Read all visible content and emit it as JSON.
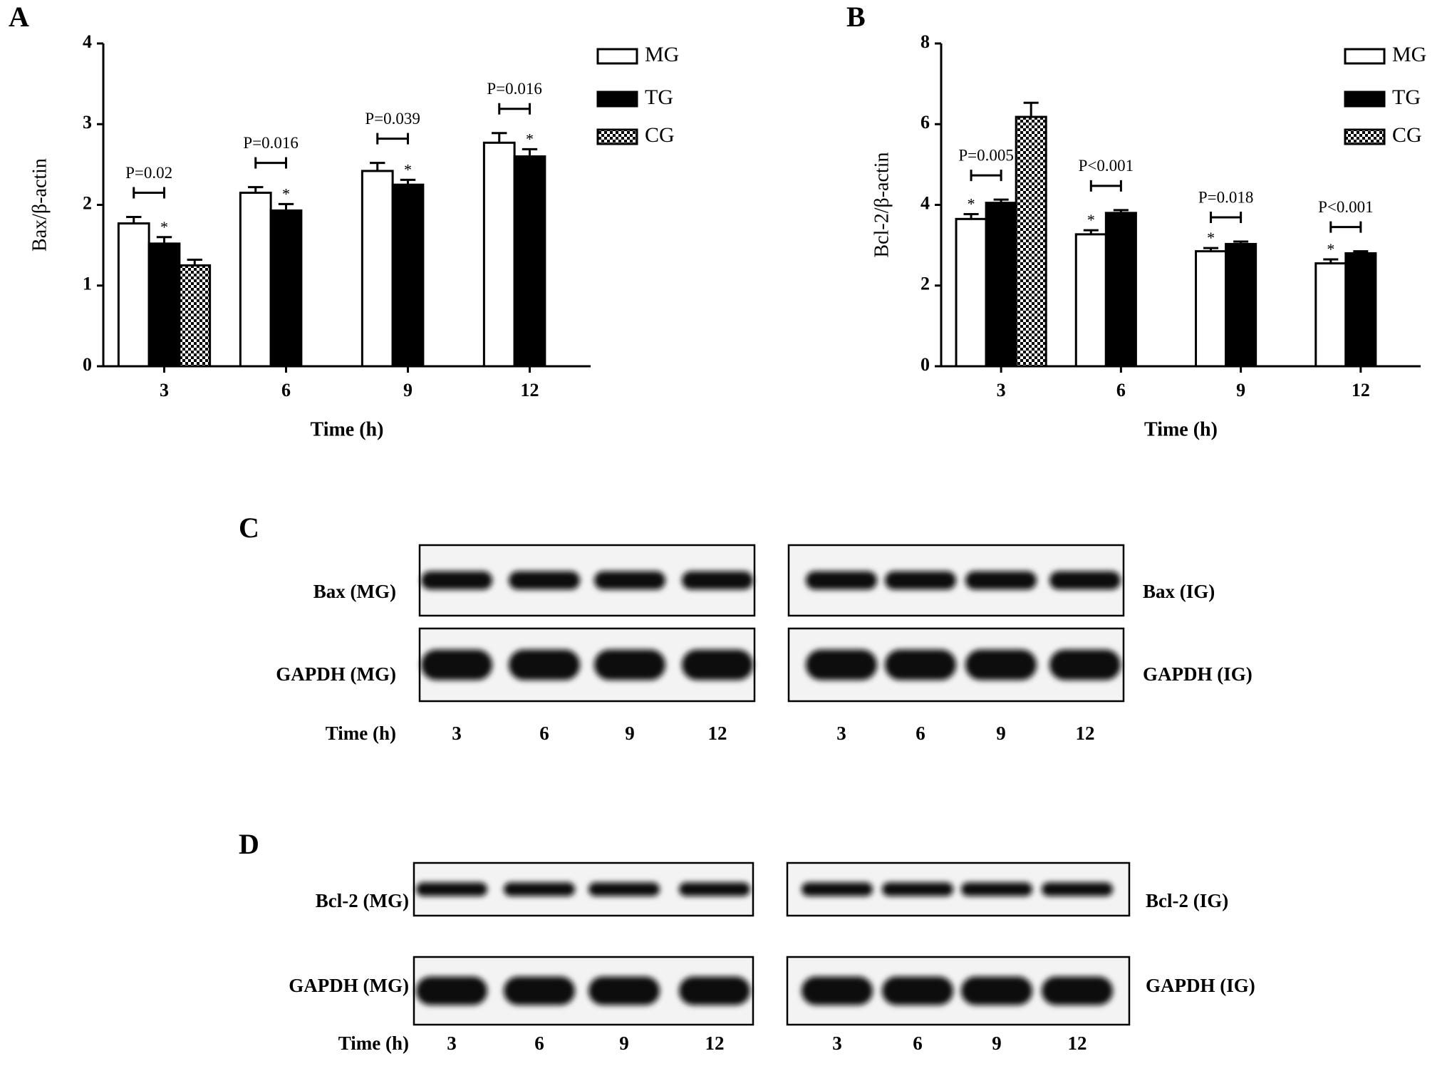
{
  "chart_data": [
    {
      "type": "bar",
      "panel": "A",
      "ylabel": "Bax/β-actin",
      "xlabel": "Time (h)",
      "categories": [
        "3",
        "6",
        "9",
        "12"
      ],
      "series": [
        {
          "name": "MG",
          "color": "#ffffff",
          "values": [
            1.77,
            2.15,
            2.42,
            2.77
          ],
          "errors": [
            0.08,
            0.07,
            0.1,
            0.12
          ],
          "significance": [
            null,
            null,
            null,
            null
          ]
        },
        {
          "name": "TG",
          "color": "#000000",
          "values": [
            1.52,
            1.93,
            2.25,
            2.6
          ],
          "errors": [
            0.08,
            0.08,
            0.06,
            0.09
          ],
          "significance": [
            "*",
            "*",
            "*",
            "*"
          ]
        },
        {
          "name": "CG",
          "color": "#000000",
          "pattern": "checker",
          "values": [
            1.25,
            null,
            null,
            null
          ],
          "errors": [
            0.07,
            null,
            null,
            null
          ],
          "significance": [
            null,
            null,
            null,
            null
          ]
        }
      ],
      "p_values": [
        "P=0.02",
        "P=0.016",
        "P=0.039",
        "P=0.016"
      ],
      "ylim": [
        0,
        4
      ],
      "yticks": [
        0,
        1,
        2,
        3,
        4
      ],
      "legend": "top-right"
    },
    {
      "type": "bar",
      "panel": "B",
      "ylabel": "Bcl-2/β-actin",
      "xlabel": "Time (h)",
      "categories": [
        "3",
        "6",
        "9",
        "12"
      ],
      "series": [
        {
          "name": "MG",
          "color": "#ffffff",
          "values": [
            3.65,
            3.27,
            2.85,
            2.55
          ],
          "errors": [
            0.12,
            0.1,
            0.08,
            0.1
          ],
          "significance": [
            "*",
            "*",
            "*",
            "*"
          ]
        },
        {
          "name": "TG",
          "color": "#000000",
          "values": [
            4.05,
            3.8,
            3.03,
            2.8
          ],
          "errors": [
            0.08,
            0.07,
            0.06,
            0.05
          ],
          "significance": [
            null,
            null,
            null,
            null
          ]
        },
        {
          "name": "CG",
          "color": "#000000",
          "pattern": "checker",
          "values": [
            6.18,
            null,
            null,
            null
          ],
          "errors": [
            0.35,
            null,
            null,
            null
          ],
          "significance": [
            null,
            null,
            null,
            null
          ]
        }
      ],
      "p_values": [
        "P=0.005",
        "P<0.001",
        "P=0.018",
        "P<0.001"
      ],
      "ylim": [
        0,
        8
      ],
      "yticks": [
        0,
        2,
        4,
        6,
        8
      ],
      "legend": "top-right"
    }
  ],
  "blots": [
    {
      "letter": "C",
      "rows": [
        {
          "left": "Bax (MG)",
          "right": "Bax (IG)"
        },
        {
          "left": "GAPDH (MG)",
          "right": "GAPDH (IG)"
        }
      ],
      "time_label": "Time (h)",
      "times": [
        "3",
        "6",
        "9",
        "12"
      ]
    },
    {
      "letter": "D",
      "rows": [
        {
          "left": "Bcl-2 (MG)",
          "right": "Bcl-2 (IG)"
        },
        {
          "left": "GAPDH (MG)",
          "right": "GAPDH (IG)"
        }
      ],
      "time_label": "Time (h)",
      "times": [
        "3",
        "6",
        "9",
        "12"
      ]
    }
  ]
}
